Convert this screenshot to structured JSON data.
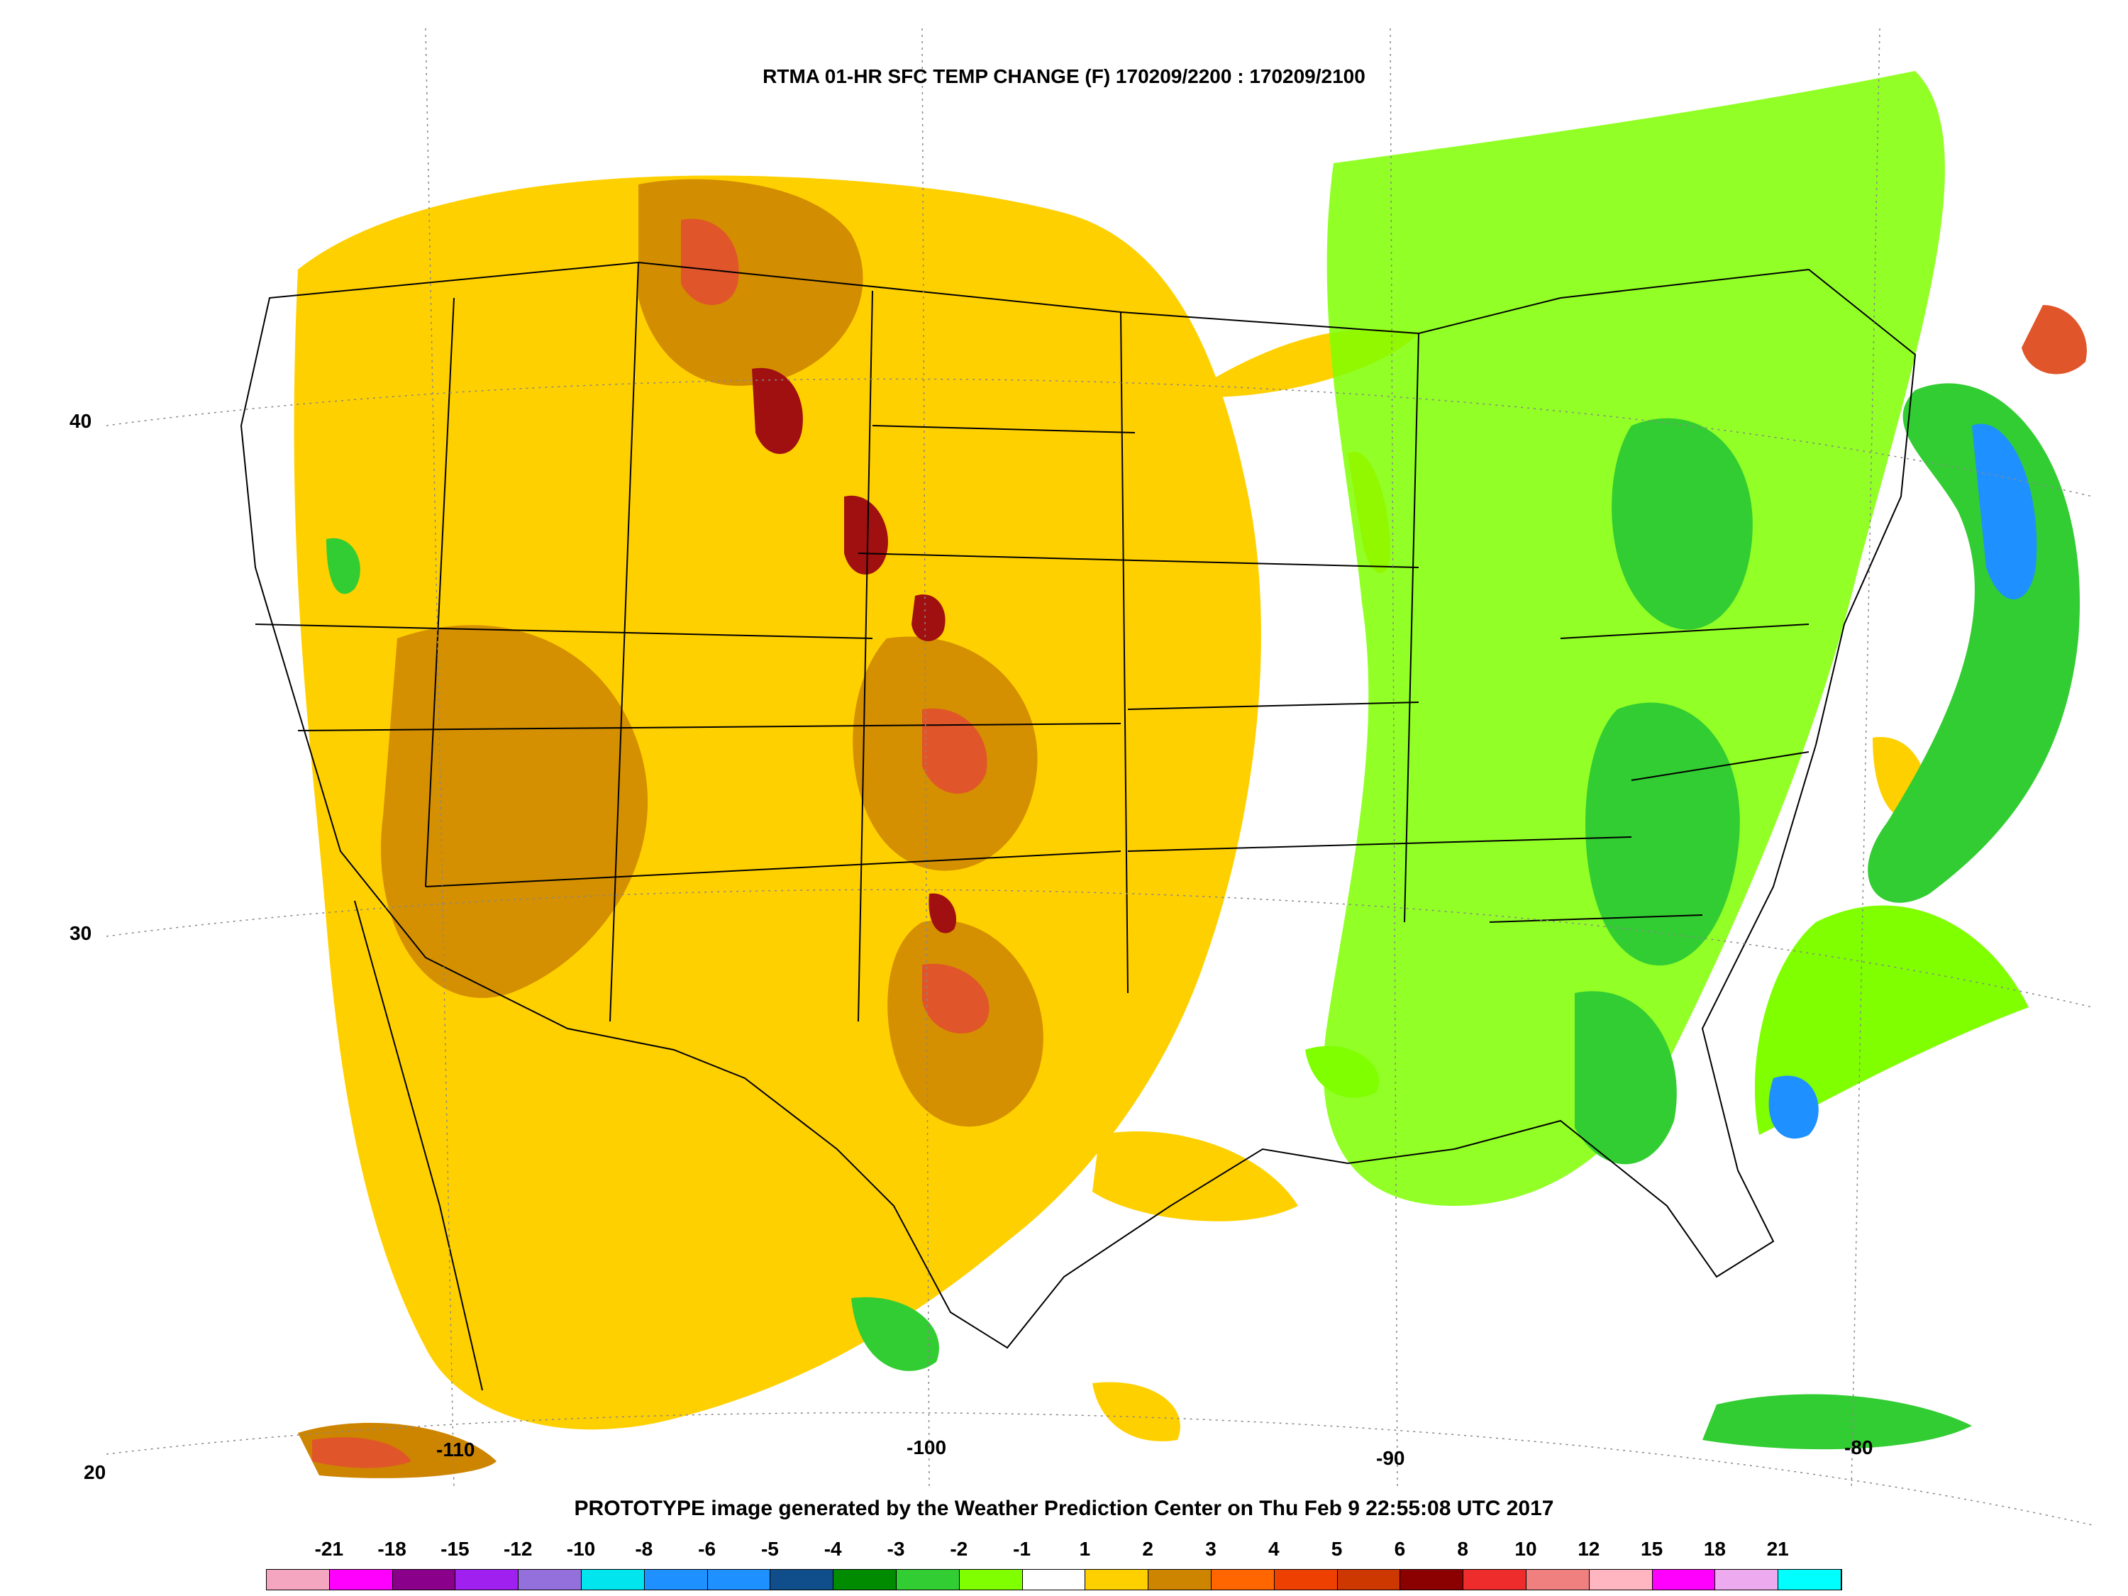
{
  "title": "RTMA 01-HR SFC TEMP CHANGE (F) 170209/2200 : 170209/2100",
  "footer": "PROTOTYPE image generated by the Weather Prediction Center on Thu Feb  9 22:55:08 UTC 2017",
  "latitude_labels": [
    "40",
    "30",
    "20"
  ],
  "longitude_labels": [
    "-110",
    "-100",
    "-90",
    "-80"
  ],
  "legend": {
    "labels": [
      "-21",
      "-18",
      "-15",
      "-12",
      "-10",
      "-8",
      "-6",
      "-5",
      "-4",
      "-3",
      "-2",
      "-1",
      "1",
      "2",
      "3",
      "4",
      "5",
      "6",
      "8",
      "10",
      "12",
      "15",
      "18",
      "21"
    ],
    "colors": [
      "#f4a6c0",
      "#ff00ff",
      "#8b008b",
      "#a020f0",
      "#9370db",
      "#00e5ee",
      "#1e90ff",
      "#1e90ff",
      "#104e8b",
      "#008b00",
      "#32cd32",
      "#7fff00",
      "#ffffff",
      "#ffd000",
      "#cd8500",
      "#ff6600",
      "#ee4000",
      "#cd3700",
      "#8b0000",
      "#ee2c2c",
      "#f08080",
      "#ffb6c1",
      "#ff00ff",
      "#eeaaee",
      "#00ffff"
    ]
  },
  "colors": {
    "warm_light": "#ffd000",
    "warm_mid": "#cd8500",
    "warm_strong": "#e0552a",
    "warm_max": "#a01010",
    "cool_light": "#7fff00",
    "cool_mid": "#32cd32",
    "cool_strong": "#008b00",
    "cool_max": "#1e90ff",
    "boundary": "#000000"
  }
}
